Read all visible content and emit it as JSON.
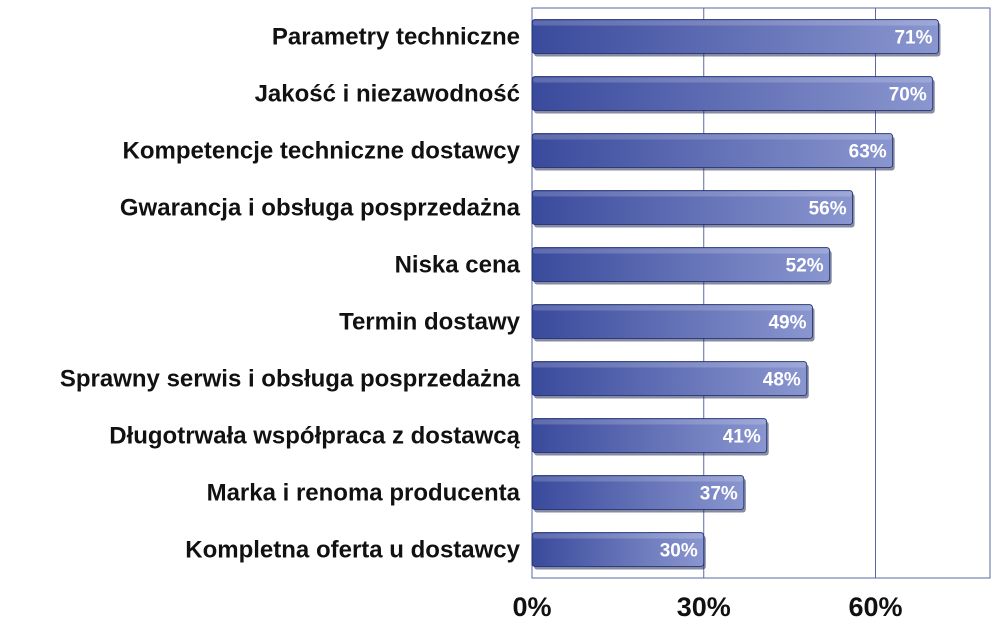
{
  "chart_data": {
    "type": "bar",
    "orientation": "horizontal",
    "categories": [
      "Parametry techniczne",
      "Jakość i niezawodność",
      "Kompetencje techniczne dostawcy",
      "Gwarancja i obsługa posprzedażna",
      "Niska cena",
      "Termin dostawy",
      "Sprawny serwis i obsługa posprzedażna",
      "Długotrwała współpraca z dostawcą",
      "Marka i renoma producenta",
      "Kompletna oferta u dostawcy"
    ],
    "values": [
      71,
      70,
      63,
      56,
      52,
      49,
      48,
      41,
      37,
      30
    ],
    "value_labels": [
      "71%",
      "70%",
      "63%",
      "56%",
      "52%",
      "49%",
      "48%",
      "41%",
      "37%",
      "30%"
    ],
    "xlim": [
      0,
      80
    ],
    "xticks": [
      0,
      30,
      60
    ],
    "xtick_labels": [
      "0%",
      "30%",
      "60%"
    ],
    "grid": "vertical",
    "title": "",
    "xlabel": "",
    "ylabel": "",
    "colors": {
      "bar_light": "#8a96cf",
      "bar_dark": "#3a4a9c",
      "bar_edge": "#1a2a6a",
      "grid": "#5a6aa8"
    }
  }
}
